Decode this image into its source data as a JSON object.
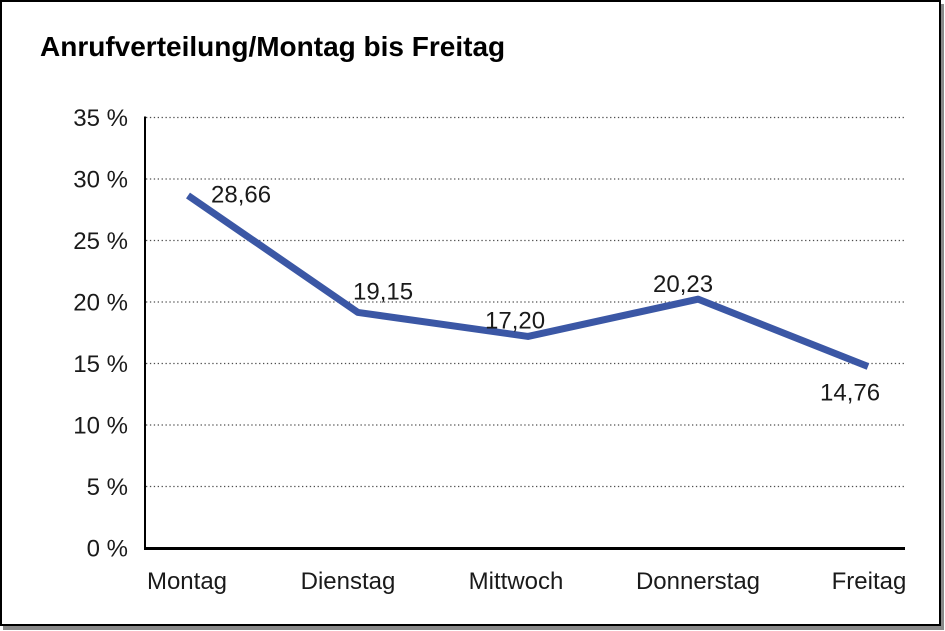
{
  "chart_data": {
    "type": "line",
    "title": "Anrufverteilung/Montag bis Freitag",
    "categories": [
      "Montag",
      "Dienstag",
      "Mittwoch",
      "Donnerstag",
      "Freitag"
    ],
    "values": [
      28.66,
      19.15,
      17.2,
      20.23,
      14.76
    ],
    "value_labels": [
      "28,66",
      "19,15",
      "17,20",
      "20,23",
      "14,76"
    ],
    "y_ticks": [
      "0 %",
      "5 %",
      "10 %",
      "15 %",
      "20 %",
      "25 %",
      "30 %",
      "35 %"
    ],
    "ylim": [
      0,
      35
    ],
    "y_step": 5,
    "xlabel": "",
    "ylabel": "",
    "grid": "dotted horizontal gridlines at each 5% step",
    "legend": "none",
    "line_color": "#3B57A5",
    "grid_color": "#4d4d4d",
    "axis_color": "#000000",
    "text_color": "#1a1a1a"
  }
}
